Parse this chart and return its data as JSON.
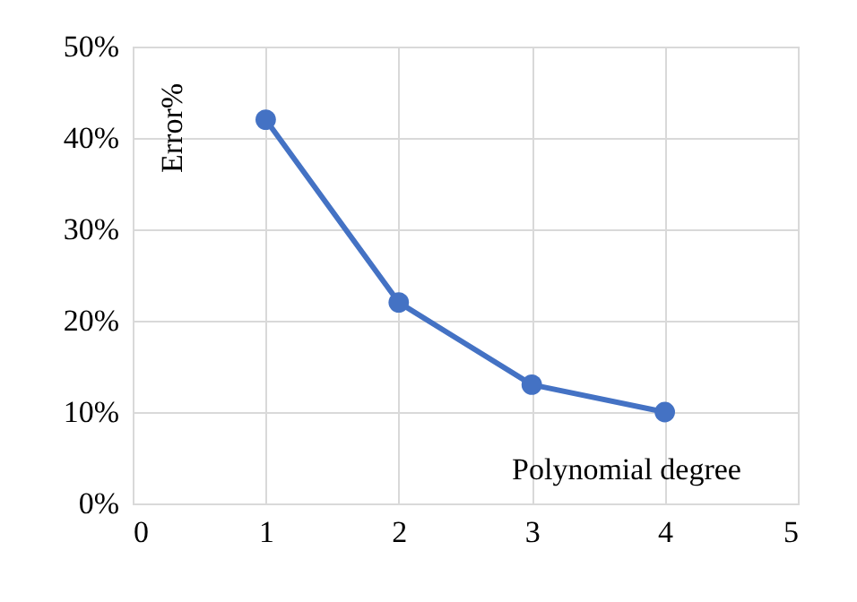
{
  "chart_data": {
    "type": "line",
    "xlabel": "Polynomial degree",
    "ylabel": "Error%",
    "x": [
      1,
      2,
      3,
      4
    ],
    "series": [
      {
        "color": "#4472c4",
        "values": [
          42,
          22,
          13,
          10
        ]
      }
    ],
    "xlim": [
      0,
      5
    ],
    "xticks": [
      0,
      1,
      2,
      3,
      4,
      5
    ],
    "ylim": [
      0,
      50
    ],
    "yticks": [
      {
        "value": 0,
        "label": "0%"
      },
      {
        "value": 10,
        "label": "10%"
      },
      {
        "value": 20,
        "label": "20%"
      },
      {
        "value": 30,
        "label": "30%"
      },
      {
        "value": 40,
        "label": "40%"
      },
      {
        "value": 50,
        "label": "50%"
      }
    ],
    "grid": true,
    "marker": "circle",
    "line_style": "solid"
  }
}
